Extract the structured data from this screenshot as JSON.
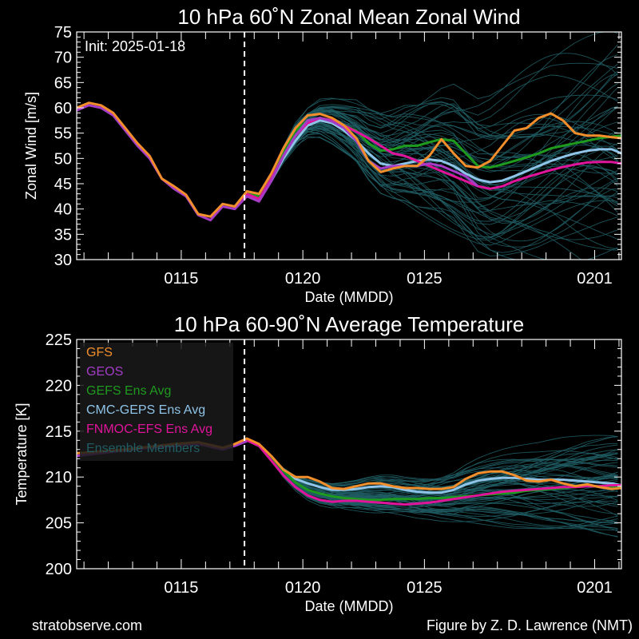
{
  "footer": {
    "left": "stratobserve.com",
    "right": "Figure by Z. D. Lawrence (NMT)"
  },
  "colors": {
    "background": "#000000",
    "GFS": "#f28e2b",
    "GEOS": "#a43cc6",
    "GEFS Ens Avg": "#1e9a1e",
    "CMC-GEPS Ens Avg": "#8fc4e8",
    "FNMOC-EFS Ens Avg": "#e0149a",
    "Ensemble Members": "#1f5c63"
  },
  "chart_data": [
    {
      "type": "line",
      "title": "10 hPa  60˚N   Zonal Mean Zonal Wind",
      "xlabel": "Date (MMDD)",
      "ylabel": "Zonal  Wind   [m/s]",
      "annotation": "Init: 2025-01-18",
      "x_unit": "days since 2025-01-15",
      "xlim": [
        -4.3,
        18.1
      ],
      "ylim": [
        30,
        75
      ],
      "yticks": [
        30,
        35,
        40,
        45,
        50,
        55,
        60,
        65,
        70,
        75
      ],
      "xticks": [
        {
          "x": 0,
          "label": "0115"
        },
        {
          "x": 5,
          "label": "0120"
        },
        {
          "x": 10,
          "label": "0125"
        },
        {
          "x": 17,
          "label": "0201"
        }
      ],
      "init_x": 2.6,
      "grid": false,
      "legend": null,
      "series": [
        {
          "name": "GFS",
          "x": [
            -4.3,
            -3.8,
            -3.3,
            -2.8,
            -2.3,
            -1.8,
            -1.3,
            -0.8,
            -0.3,
            0.2,
            0.7,
            1.2,
            1.7,
            2.2,
            2.7,
            3.2,
            3.7,
            4.2,
            4.7,
            5.2,
            5.7,
            6.2,
            6.7,
            7.2,
            7.7,
            8.2,
            8.7,
            9.2,
            9.7,
            10.2,
            10.7,
            11.2,
            11.7,
            12.2,
            12.7,
            13.2,
            13.7,
            14.2,
            14.7,
            15.2,
            15.7,
            16.2,
            16.7,
            17.2,
            17.7,
            18.1
          ],
          "values": [
            60,
            61,
            60.5,
            59,
            56,
            53,
            50.5,
            46,
            44.5,
            42.8,
            39,
            38.5,
            41,
            40.5,
            43.5,
            43,
            47,
            52,
            56,
            58.5,
            58.8,
            58,
            56.5,
            54,
            49.5,
            47.3,
            48,
            48.5,
            48.5,
            50.5,
            53.8,
            51,
            48.5,
            48.2,
            49.5,
            52.5,
            55.5,
            56,
            58,
            58.9,
            57.5,
            55,
            54.5,
            54.5,
            54.2,
            54
          ]
        },
        {
          "name": "GEOS",
          "x": [
            -4.3,
            -3.8,
            -3.3,
            -2.8,
            -2.3,
            -1.8,
            -1.3,
            -0.8,
            -0.3,
            0.2,
            0.7,
            1.2,
            1.7,
            2.2,
            2.7,
            3.2,
            3.7,
            4.2,
            4.7,
            5.2,
            5.7,
            6.2,
            6.7,
            7.2,
            7.7,
            8.2,
            8.7,
            9.2,
            9.7,
            10.2,
            10.7,
            11.2,
            11.7,
            12.2
          ],
          "values": [
            59.5,
            60.5,
            60,
            58.5,
            55.5,
            52.5,
            50,
            46,
            44,
            42.5,
            38.8,
            37.8,
            40.5,
            40,
            42.5,
            41.5,
            45.5,
            50.5,
            54.5,
            57.5,
            58,
            57.3,
            56,
            53.5,
            49.5,
            48,
            48.5,
            48.5,
            48.5,
            49,
            48.5,
            47.5,
            46.5,
            44.5
          ]
        },
        {
          "name": "GEFS Ens Avg",
          "x": [
            2.2,
            2.7,
            3.2,
            3.7,
            4.2,
            4.7,
            5.2,
            5.7,
            6.2,
            6.7,
            7.2,
            7.7,
            8.2,
            8.7,
            9.2,
            9.7,
            10.2,
            10.7,
            11.2,
            11.7,
            12.2,
            12.7,
            13.2,
            13.7,
            14.2,
            14.7,
            15.2,
            15.7,
            16.2,
            16.7,
            17.2,
            17.7,
            18.1
          ],
          "values": [
            40.5,
            43.5,
            42.5,
            46.5,
            51.5,
            55.5,
            57.5,
            58,
            57.5,
            56.5,
            55.5,
            53,
            51.5,
            51.8,
            52.5,
            52.5,
            53.2,
            53.8,
            53.5,
            51,
            48.5,
            48.2,
            48.8,
            49.5,
            50.2,
            51,
            52,
            52.5,
            53,
            53.5,
            54,
            54.3,
            54.5
          ]
        },
        {
          "name": "CMC-GEPS Ens Avg",
          "x": [
            2.2,
            2.7,
            3.2,
            3.7,
            4.2,
            4.7,
            5.2,
            5.7,
            6.2,
            6.7,
            7.2,
            7.7,
            8.2,
            8.7,
            9.2,
            9.7,
            10.2,
            10.7,
            11.2,
            11.7,
            12.2,
            12.7,
            13.2,
            13.7,
            14.2,
            14.7,
            15.2,
            15.7,
            16.2,
            16.7,
            17.2,
            17.7,
            18.1
          ],
          "values": [
            40.5,
            43,
            42,
            45.5,
            50,
            53.5,
            56.5,
            57.5,
            57,
            55.5,
            53.5,
            51,
            49,
            48.5,
            49,
            49.5,
            49.8,
            49.5,
            48.5,
            47,
            45.8,
            45.3,
            45.6,
            46.5,
            47.5,
            48.5,
            49.5,
            50.3,
            51,
            51.5,
            51.8,
            51.8,
            51
          ]
        },
        {
          "name": "FNMOC-EFS Ens Avg",
          "x": [
            2.2,
            2.7,
            3.2,
            3.7,
            4.2,
            4.7,
            5.2,
            5.7,
            6.2,
            6.7,
            7.2,
            7.7,
            8.2,
            8.7,
            9.2,
            9.7,
            10.2,
            10.7,
            11.2,
            11.7,
            12.2,
            12.7,
            13.2,
            13.7,
            14.2,
            14.7,
            15.2,
            15.7,
            16.2,
            16.7,
            17.2,
            17.7,
            18.1
          ],
          "values": [
            40.5,
            43,
            42,
            46,
            50.5,
            54.5,
            57,
            58,
            57.5,
            56.5,
            55.3,
            54,
            52.5,
            51,
            50.5,
            49.5,
            48.5,
            47.5,
            46.5,
            45.5,
            44.5,
            44,
            44.5,
            45.5,
            46.3,
            47,
            47.7,
            48.3,
            48.8,
            49.2,
            49.3,
            49.3,
            49
          ]
        }
      ]
    },
    {
      "type": "line",
      "title": "10 hPa  60-90˚N Average Temperature",
      "xlabel": "Date (MMDD)",
      "ylabel": "Temperature  [K]",
      "x_unit": "days since 2025-01-15",
      "xlim": [
        -4.3,
        18.1
      ],
      "ylim": [
        200,
        225
      ],
      "yticks": [
        200,
        205,
        210,
        215,
        220,
        225
      ],
      "xticks": [
        {
          "x": 0,
          "label": "0115"
        },
        {
          "x": 5,
          "label": "0120"
        },
        {
          "x": 10,
          "label": "0125"
        },
        {
          "x": 17,
          "label": "0201"
        }
      ],
      "init_x": 2.6,
      "grid": false,
      "legend": "top-left",
      "series": [
        {
          "name": "GFS",
          "x": [
            -4.3,
            -3.3,
            -2.3,
            -1.3,
            -0.3,
            0.7,
            1.7,
            2.2,
            2.7,
            3.2,
            3.7,
            4.2,
            4.7,
            5.2,
            5.7,
            6.2,
            6.7,
            7.2,
            7.7,
            8.2,
            8.7,
            9.2,
            9.7,
            10.2,
            10.7,
            11.2,
            11.7,
            12.2,
            12.7,
            13.2,
            13.7,
            14.2,
            14.7,
            15.2,
            15.7,
            16.2,
            16.7,
            17.2,
            17.7,
            18.1
          ],
          "values": [
            212.6,
            212.8,
            213.0,
            213.3,
            213.6,
            213.8,
            213.2,
            213.6,
            214.2,
            213.6,
            212.3,
            210.8,
            210.0,
            210.0,
            209.5,
            208.8,
            208.7,
            209.0,
            209.3,
            209.3,
            209.0,
            208.8,
            208.8,
            208.7,
            208.7,
            208.9,
            209.8,
            210.4,
            210.6,
            210.6,
            210.2,
            209.6,
            209.5,
            209.7,
            209.3,
            209.0,
            209.2,
            208.9,
            208.7,
            208.8
          ]
        },
        {
          "name": "GEOS",
          "x": [
            -4.3,
            -3.3,
            -2.3,
            -1.3,
            -0.3,
            0.7,
            1.7,
            2.2,
            2.7
          ],
          "values": [
            212.3,
            212.6,
            212.9,
            213.2,
            213.4,
            213.6,
            213.0,
            213.4,
            213.9
          ]
        },
        {
          "name": "GEFS Ens Avg",
          "x": [
            2.2,
            2.7,
            3.2,
            3.7,
            4.2,
            4.7,
            5.2,
            5.7,
            6.2,
            6.7,
            7.2,
            7.7,
            8.2,
            8.7,
            9.2,
            9.7,
            10.2,
            10.7,
            11.2,
            11.7,
            12.2,
            12.7,
            13.2,
            13.7,
            14.2,
            14.7,
            15.2,
            15.7,
            16.2,
            16.7,
            17.2,
            17.7,
            18.1
          ],
          "values": [
            213.6,
            214.0,
            213.5,
            212.2,
            210.7,
            209.4,
            208.6,
            208.2,
            207.9,
            207.7,
            207.6,
            207.5,
            207.5,
            207.6,
            207.6,
            207.6,
            207.7,
            207.7,
            207.8,
            207.9,
            208.0,
            208.1,
            208.2,
            208.3,
            208.5,
            208.6,
            208.7,
            208.8,
            208.9,
            209.0,
            209.0,
            209.0,
            209.0
          ]
        },
        {
          "name": "CMC-GEPS Ens Avg",
          "x": [
            2.2,
            2.7,
            3.2,
            3.7,
            4.2,
            4.7,
            5.2,
            5.7,
            6.2,
            6.7,
            7.2,
            7.7,
            8.2,
            8.7,
            9.2,
            9.7,
            10.2,
            10.7,
            11.2,
            11.7,
            12.2,
            12.7,
            13.2,
            13.7,
            14.2,
            14.7,
            15.2,
            15.7,
            16.2,
            16.7,
            17.2,
            17.7,
            18.1
          ],
          "values": [
            213.6,
            214.0,
            213.4,
            212.2,
            210.8,
            209.8,
            209.3,
            208.9,
            208.6,
            208.6,
            208.7,
            208.9,
            209.0,
            208.9,
            208.6,
            208.4,
            208.3,
            208.3,
            208.6,
            209.2,
            209.6,
            209.8,
            209.9,
            209.9,
            209.8,
            209.7,
            209.7,
            209.7,
            209.6,
            209.5,
            209.4,
            209.3,
            209.1
          ]
        },
        {
          "name": "FNMOC-EFS Ens Avg",
          "x": [
            2.2,
            2.7,
            3.2,
            3.7,
            4.2,
            4.7,
            5.2,
            5.7,
            6.2,
            6.7,
            7.2,
            7.7,
            8.2,
            8.7,
            9.2,
            9.7,
            10.2,
            10.7,
            11.2,
            11.7,
            12.2,
            12.7,
            13.2,
            13.7,
            14.2,
            14.7,
            15.2,
            15.7,
            16.2,
            16.7,
            17.2,
            17.7,
            18.1
          ],
          "values": [
            213.6,
            214.0,
            213.4,
            211.8,
            210.2,
            208.9,
            208.0,
            207.5,
            207.3,
            207.4,
            207.4,
            207.3,
            207.2,
            207.1,
            207.0,
            207.1,
            207.2,
            207.4,
            207.6,
            207.8,
            208.0,
            208.2,
            208.4,
            208.5,
            208.6,
            208.7,
            208.8,
            208.9,
            208.9,
            209.0,
            209.0,
            209.1,
            209.1
          ]
        }
      ]
    }
  ]
}
